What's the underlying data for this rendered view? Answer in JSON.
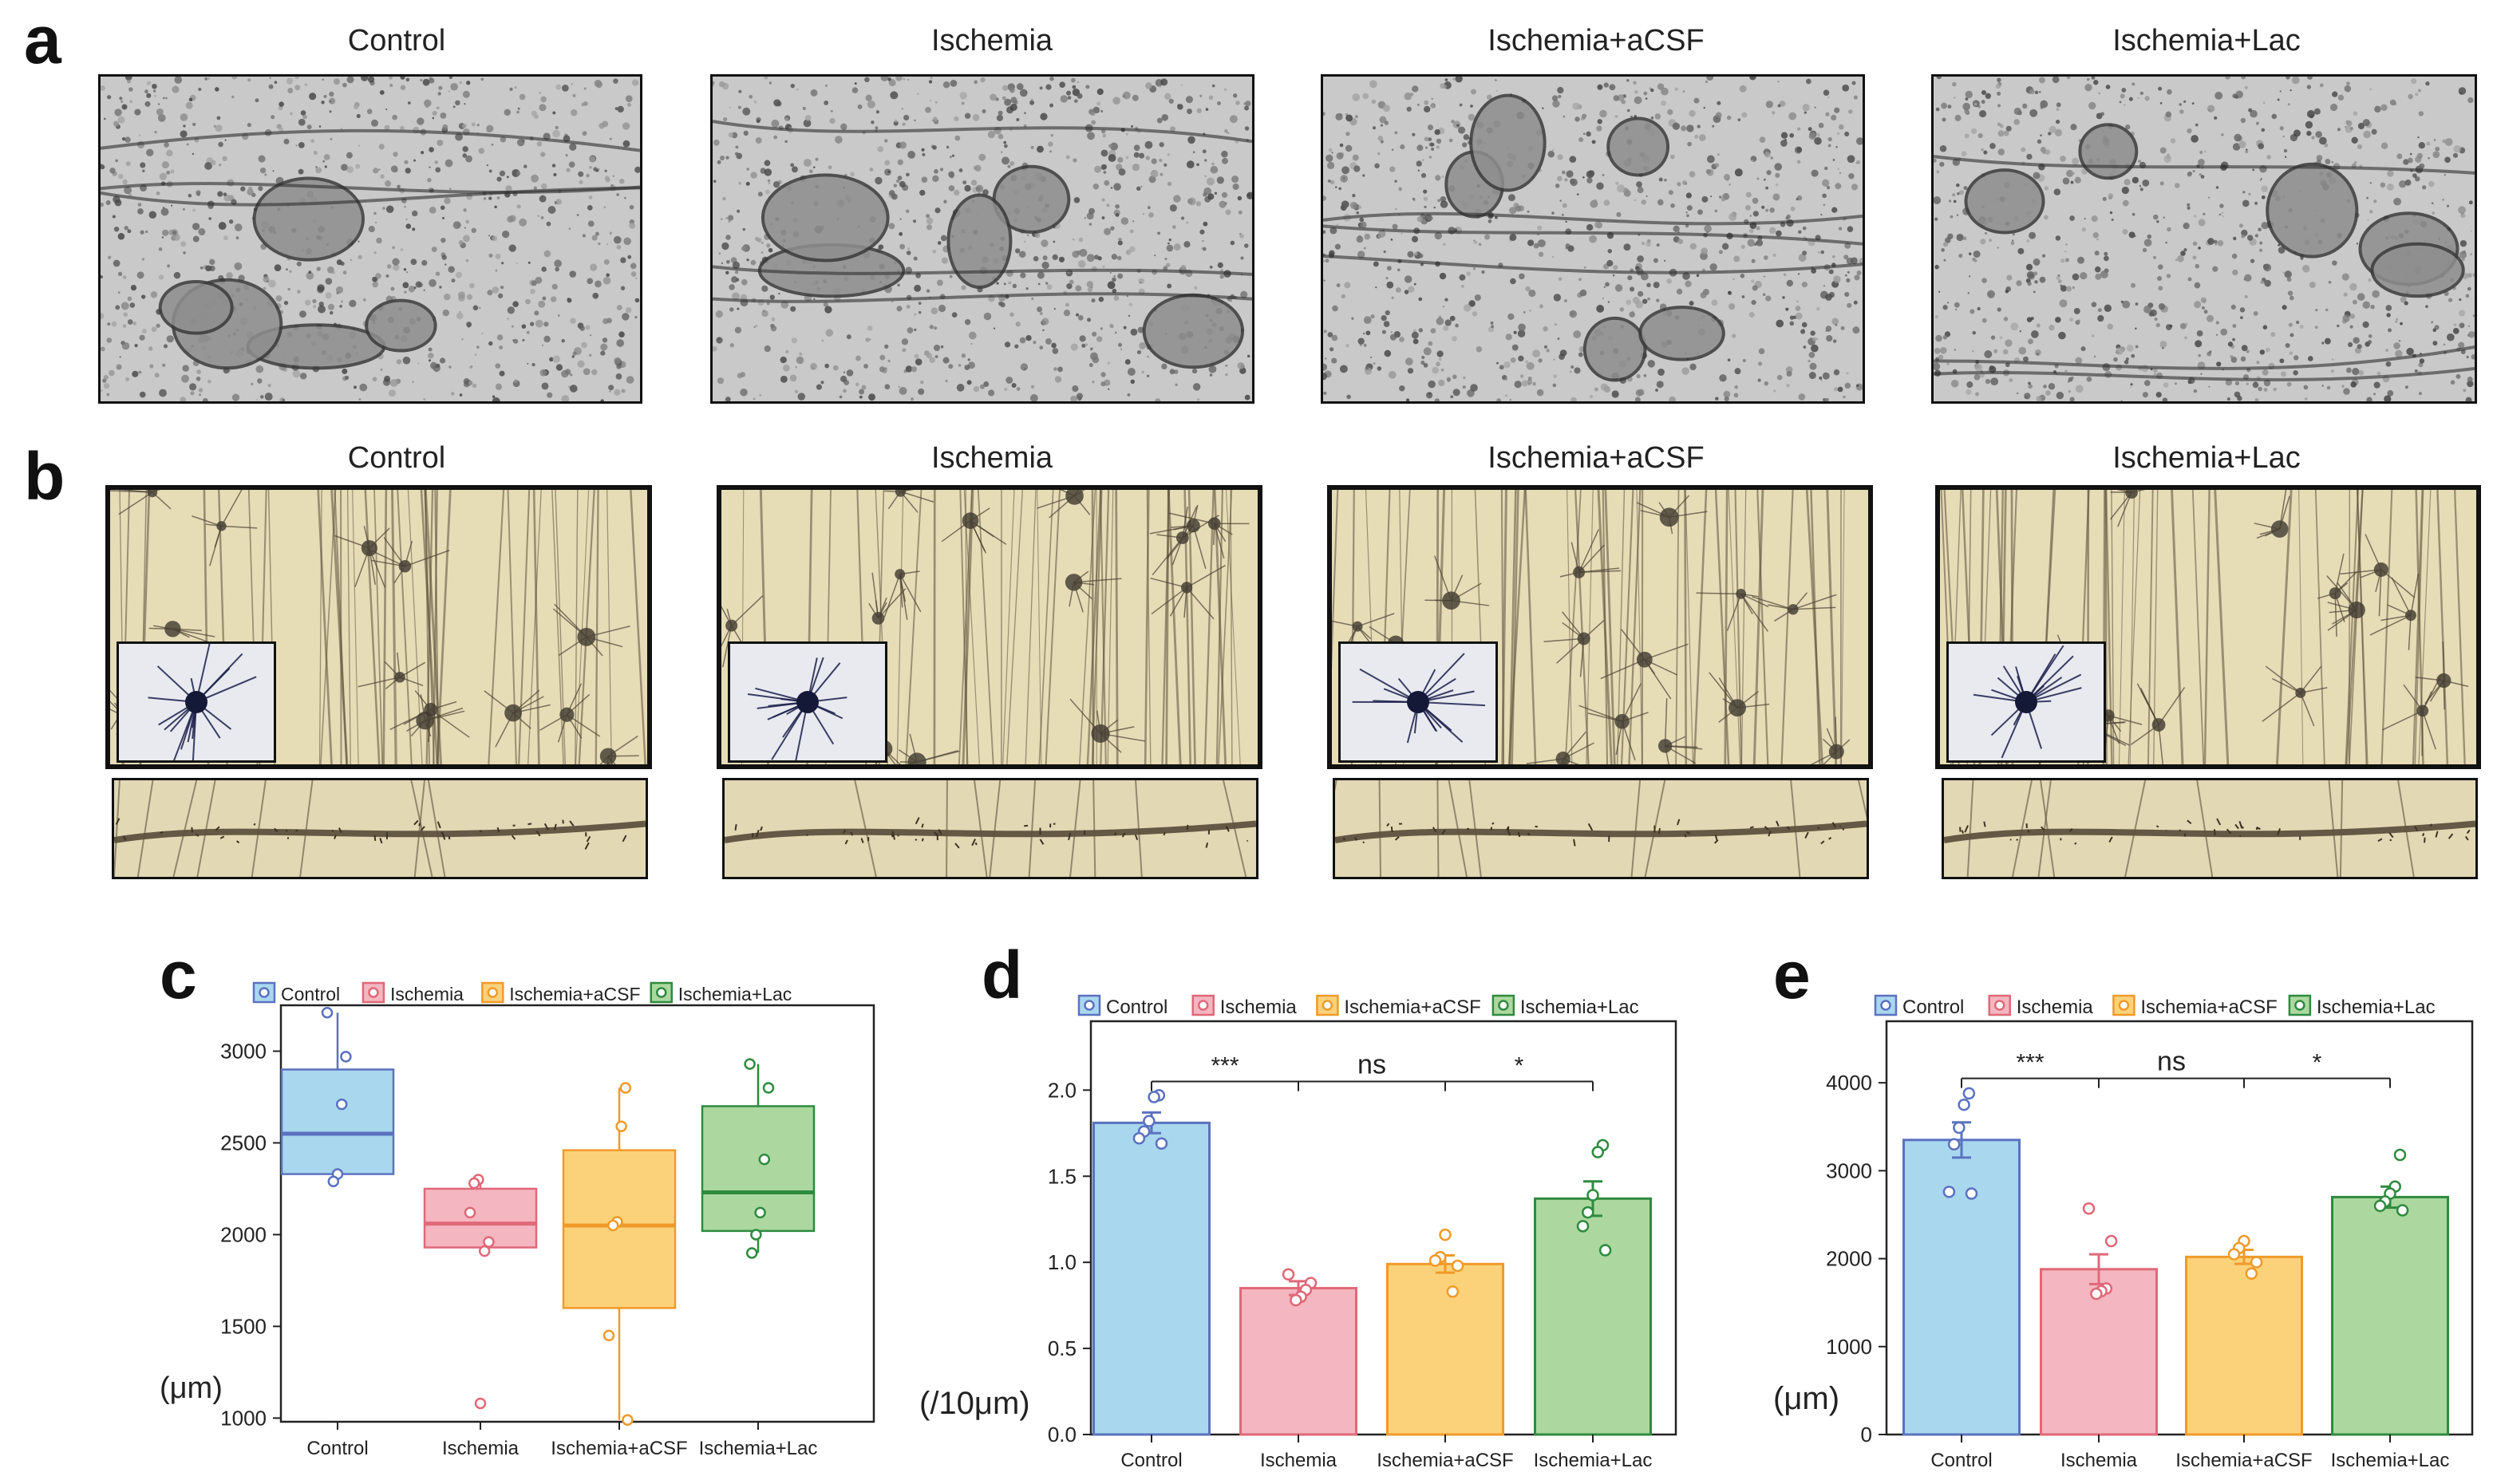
{
  "panels": {
    "a": {
      "letter": "a",
      "titles": [
        "Control",
        "Ischemia",
        "Ischemia+aCSF",
        "Ischemia+Lac"
      ]
    },
    "b": {
      "letter": "b",
      "titles": [
        "Control",
        "Ischemia",
        "Ischemia+aCSF",
        "Ischemia+Lac"
      ]
    },
    "c": {
      "letter": "c"
    },
    "d": {
      "letter": "d"
    },
    "e": {
      "letter": "e"
    }
  },
  "colors": {
    "Control": {
      "fill": "#a9d8ee",
      "stroke": "#5b72c0"
    },
    "Ischemia": {
      "fill": "#f4b6c0",
      "stroke": "#e06878"
    },
    "Ischemia+aCSF": {
      "fill": "#fbd27a",
      "stroke": "#f09a2a"
    },
    "Ischemia+Lac": {
      "fill": "#acd8a0",
      "stroke": "#2e8b3e"
    }
  },
  "chart_data": [
    {
      "id": "c",
      "type": "box",
      "categories": [
        "Control",
        "Ischemia",
        "Ischemia+aCSF",
        "Ischemia+Lac"
      ],
      "legend": [
        "Control",
        "Ischemia",
        "Ischemia+aCSF",
        "Ischemia+Lac"
      ],
      "legend_position": "top",
      "ylabel": "(μm)",
      "ylim": [
        980,
        3250
      ],
      "yticks": [
        1000,
        1500,
        2000,
        2500,
        3000
      ],
      "boxes": [
        {
          "q1": 2330,
          "median": 2550,
          "q3": 2900,
          "whisker_low": 2290,
          "whisker_high": 3210,
          "points": [
            3210,
            2970,
            2710,
            2330,
            2290
          ]
        },
        {
          "q1": 1930,
          "median": 2060,
          "q3": 2250,
          "whisker_low": 1930,
          "whisker_high": 2300,
          "points": [
            2300,
            2280,
            2120,
            1960,
            1910,
            1080
          ]
        },
        {
          "q1": 1600,
          "median": 2050,
          "q3": 2460,
          "whisker_low": 990,
          "whisker_high": 2800,
          "points": [
            2800,
            2590,
            2070,
            2050,
            1450,
            990
          ]
        },
        {
          "q1": 2020,
          "median": 2230,
          "q3": 2700,
          "whisker_low": 1900,
          "whisker_high": 2930,
          "points": [
            2930,
            2800,
            2410,
            2120,
            2000,
            1900
          ]
        }
      ]
    },
    {
      "id": "d",
      "type": "bar",
      "categories": [
        "Control",
        "Ischemia",
        "Ischemia+aCSF",
        "Ischemia+Lac"
      ],
      "legend": [
        "Control",
        "Ischemia",
        "Ischemia+aCSF",
        "Ischemia+Lac"
      ],
      "legend_position": "top",
      "ylabel": "(/10μm)",
      "ylim": [
        0,
        2.4
      ],
      "yticks": [
        "0.0",
        "0.5",
        "1.0",
        "1.5",
        "2.0"
      ],
      "values": [
        1.81,
        0.85,
        0.99,
        1.37
      ],
      "errors": [
        0.06,
        0.04,
        0.05,
        0.1
      ],
      "points": [
        [
          1.97,
          1.96,
          1.82,
          1.76,
          1.72,
          1.69
        ],
        [
          0.93,
          0.88,
          0.84,
          0.8,
          0.78
        ],
        [
          1.16,
          1.03,
          1.01,
          0.98,
          0.83
        ],
        [
          1.68,
          1.64,
          1.39,
          1.29,
          1.21,
          1.07
        ]
      ],
      "significance": [
        {
          "from": 0,
          "to": 1,
          "label": "***",
          "y": 2.05
        },
        {
          "from": 1,
          "to": 2,
          "label": "ns",
          "y": 2.05
        },
        {
          "from": 2,
          "to": 3,
          "label": "*",
          "y": 2.05
        }
      ]
    },
    {
      "id": "e",
      "type": "bar",
      "categories": [
        "Control",
        "Ischemia",
        "Ischemia+aCSF",
        "Ischemia+Lac"
      ],
      "legend": [
        "Control",
        "Ischemia",
        "Ischemia+aCSF",
        "Ischemia+Lac"
      ],
      "legend_position": "top",
      "ylabel": "(μm)",
      "ylim": [
        0,
        4700
      ],
      "yticks": [
        0,
        1000,
        2000,
        3000,
        4000
      ],
      "values": [
        3350,
        1880,
        2020,
        2700
      ],
      "errors": [
        200,
        170,
        80,
        120
      ],
      "points": [
        [
          3880,
          3750,
          3490,
          3300,
          2760,
          2740
        ],
        [
          2570,
          2200,
          1660,
          1630,
          1600
        ],
        [
          2200,
          2120,
          2050,
          1960,
          1830
        ],
        [
          3180,
          2820,
          2740,
          2650,
          2600,
          2550
        ]
      ],
      "significance": [
        {
          "from": 0,
          "to": 1,
          "label": "***",
          "y": 4050
        },
        {
          "from": 1,
          "to": 2,
          "label": "ns",
          "y": 4050
        },
        {
          "from": 2,
          "to": 3,
          "label": "*",
          "y": 4050
        }
      ]
    }
  ]
}
